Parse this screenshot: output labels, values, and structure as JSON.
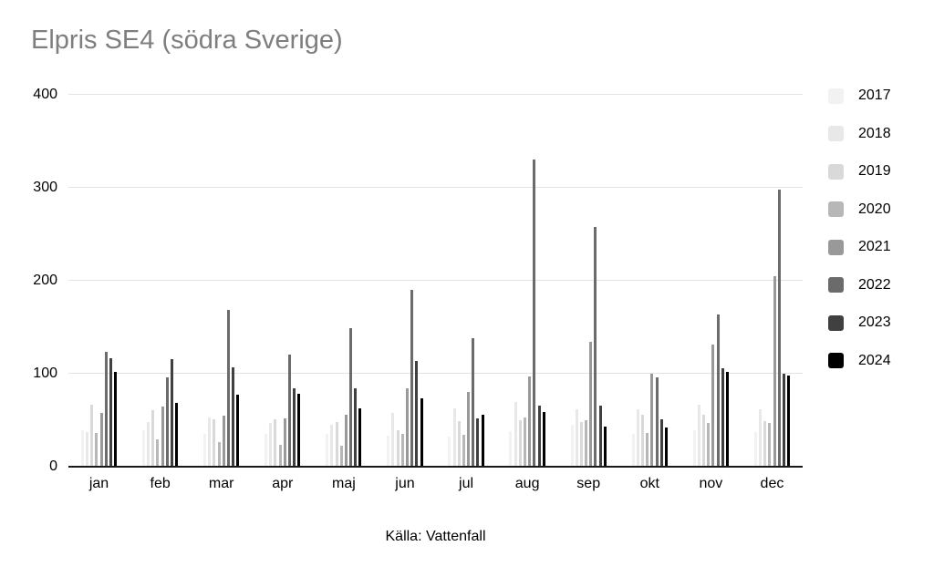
{
  "title": "Elpris SE4 (södra Sverige)",
  "source": "Källa: Vattenfall",
  "colors": {
    "title_text": "#7e7e7e",
    "gridline": "#e3e3e3",
    "axis_line": "#1a1a1a"
  },
  "chart_data": {
    "type": "bar",
    "title": "Elpris SE4 (södra Sverige)",
    "caption": "Källa: Vattenfall",
    "xlabel": "",
    "ylabel": "",
    "ylim": [
      0,
      400
    ],
    "yticks": [
      0,
      100,
      200,
      300,
      400
    ],
    "grid": true,
    "legend_position": "right",
    "categories": [
      "jan",
      "feb",
      "mar",
      "apr",
      "maj",
      "jun",
      "jul",
      "aug",
      "sep",
      "okt",
      "nov",
      "dec"
    ],
    "series": [
      {
        "name": "2017",
        "color": "#f2f2f2",
        "values": [
          39,
          39,
          35,
          35,
          35,
          33,
          32,
          38,
          45,
          35,
          39,
          37
        ]
      },
      {
        "name": "2018",
        "color": "#e8e8e8",
        "values": [
          37,
          48,
          53,
          47,
          45,
          58,
          63,
          70,
          62,
          62,
          67,
          62
        ]
      },
      {
        "name": "2019",
        "color": "#d9d9d9",
        "values": [
          67,
          61,
          51,
          51,
          48,
          39,
          49,
          50,
          48,
          56,
          56,
          49
        ]
      },
      {
        "name": "2020",
        "color": "#b7b7b7",
        "values": [
          36,
          29,
          26,
          24,
          23,
          35,
          34,
          53,
          50,
          36,
          47,
          47
        ]
      },
      {
        "name": "2021",
        "color": "#999999",
        "values": [
          58,
          65,
          55,
          52,
          56,
          84,
          80,
          97,
          134,
          100,
          131,
          205
        ]
      },
      {
        "name": "2022",
        "color": "#6b6b6b",
        "values": [
          124,
          96,
          169,
          121,
          149,
          190,
          138,
          330,
          258,
          96,
          164,
          298
        ]
      },
      {
        "name": "2023",
        "color": "#404040",
        "values": [
          117,
          116,
          107,
          84,
          84,
          114,
          52,
          66,
          66,
          51,
          106,
          100
        ]
      },
      {
        "name": "2024",
        "color": "#000000",
        "values": [
          102,
          69,
          77,
          78,
          63,
          74,
          56,
          59,
          43,
          42,
          102,
          98
        ]
      }
    ]
  }
}
